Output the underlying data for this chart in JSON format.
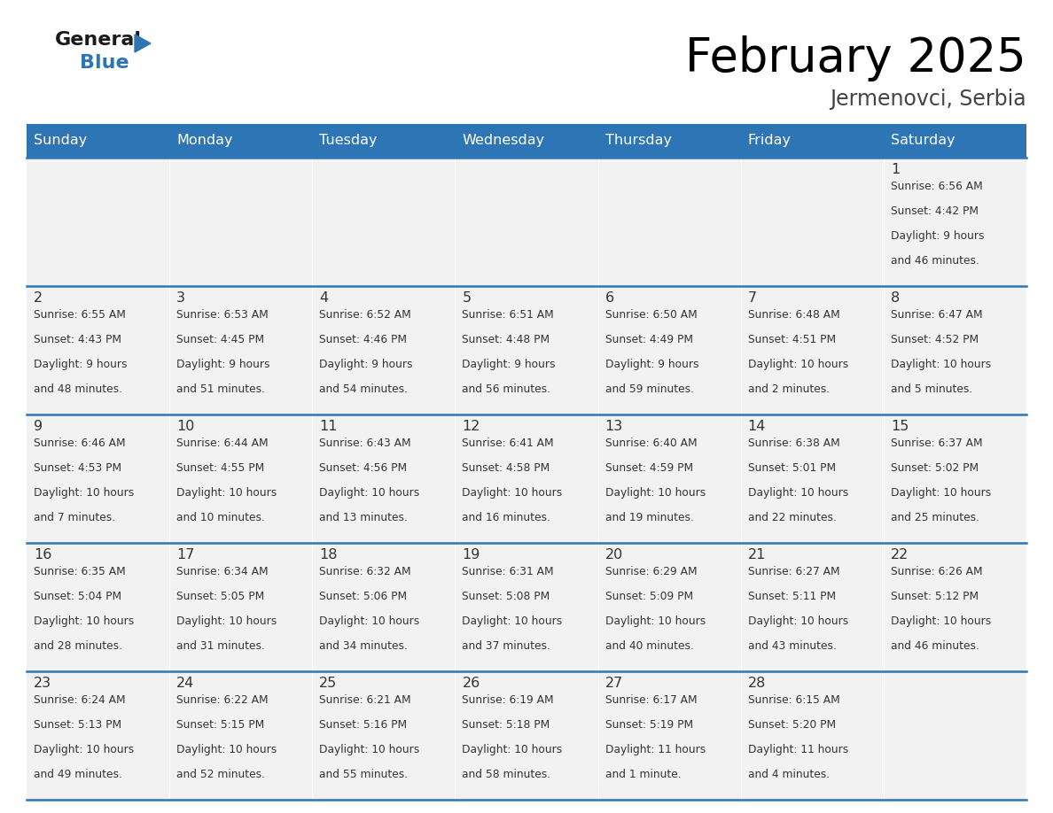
{
  "title": "February 2025",
  "subtitle": "Jermenovci, Serbia",
  "header_color": "#2E75B6",
  "header_text_color": "#FFFFFF",
  "cell_bg_color": "#F2F2F2",
  "cell_bg_alt": "#FFFFFF",
  "separator_color": "#2E75B6",
  "days_of_week": [
    "Sunday",
    "Monday",
    "Tuesday",
    "Wednesday",
    "Thursday",
    "Friday",
    "Saturday"
  ],
  "weeks": [
    [
      {
        "day": "",
        "sunrise": "",
        "sunset": "",
        "daylight": ""
      },
      {
        "day": "",
        "sunrise": "",
        "sunset": "",
        "daylight": ""
      },
      {
        "day": "",
        "sunrise": "",
        "sunset": "",
        "daylight": ""
      },
      {
        "day": "",
        "sunrise": "",
        "sunset": "",
        "daylight": ""
      },
      {
        "day": "",
        "sunrise": "",
        "sunset": "",
        "daylight": ""
      },
      {
        "day": "",
        "sunrise": "",
        "sunset": "",
        "daylight": ""
      },
      {
        "day": "1",
        "sunrise": "Sunrise: 6:56 AM",
        "sunset": "Sunset: 4:42 PM",
        "daylight": "Daylight: 9 hours\nand 46 minutes."
      }
    ],
    [
      {
        "day": "2",
        "sunrise": "Sunrise: 6:55 AM",
        "sunset": "Sunset: 4:43 PM",
        "daylight": "Daylight: 9 hours\nand 48 minutes."
      },
      {
        "day": "3",
        "sunrise": "Sunrise: 6:53 AM",
        "sunset": "Sunset: 4:45 PM",
        "daylight": "Daylight: 9 hours\nand 51 minutes."
      },
      {
        "day": "4",
        "sunrise": "Sunrise: 6:52 AM",
        "sunset": "Sunset: 4:46 PM",
        "daylight": "Daylight: 9 hours\nand 54 minutes."
      },
      {
        "day": "5",
        "sunrise": "Sunrise: 6:51 AM",
        "sunset": "Sunset: 4:48 PM",
        "daylight": "Daylight: 9 hours\nand 56 minutes."
      },
      {
        "day": "6",
        "sunrise": "Sunrise: 6:50 AM",
        "sunset": "Sunset: 4:49 PM",
        "daylight": "Daylight: 9 hours\nand 59 minutes."
      },
      {
        "day": "7",
        "sunrise": "Sunrise: 6:48 AM",
        "sunset": "Sunset: 4:51 PM",
        "daylight": "Daylight: 10 hours\nand 2 minutes."
      },
      {
        "day": "8",
        "sunrise": "Sunrise: 6:47 AM",
        "sunset": "Sunset: 4:52 PM",
        "daylight": "Daylight: 10 hours\nand 5 minutes."
      }
    ],
    [
      {
        "day": "9",
        "sunrise": "Sunrise: 6:46 AM",
        "sunset": "Sunset: 4:53 PM",
        "daylight": "Daylight: 10 hours\nand 7 minutes."
      },
      {
        "day": "10",
        "sunrise": "Sunrise: 6:44 AM",
        "sunset": "Sunset: 4:55 PM",
        "daylight": "Daylight: 10 hours\nand 10 minutes."
      },
      {
        "day": "11",
        "sunrise": "Sunrise: 6:43 AM",
        "sunset": "Sunset: 4:56 PM",
        "daylight": "Daylight: 10 hours\nand 13 minutes."
      },
      {
        "day": "12",
        "sunrise": "Sunrise: 6:41 AM",
        "sunset": "Sunset: 4:58 PM",
        "daylight": "Daylight: 10 hours\nand 16 minutes."
      },
      {
        "day": "13",
        "sunrise": "Sunrise: 6:40 AM",
        "sunset": "Sunset: 4:59 PM",
        "daylight": "Daylight: 10 hours\nand 19 minutes."
      },
      {
        "day": "14",
        "sunrise": "Sunrise: 6:38 AM",
        "sunset": "Sunset: 5:01 PM",
        "daylight": "Daylight: 10 hours\nand 22 minutes."
      },
      {
        "day": "15",
        "sunrise": "Sunrise: 6:37 AM",
        "sunset": "Sunset: 5:02 PM",
        "daylight": "Daylight: 10 hours\nand 25 minutes."
      }
    ],
    [
      {
        "day": "16",
        "sunrise": "Sunrise: 6:35 AM",
        "sunset": "Sunset: 5:04 PM",
        "daylight": "Daylight: 10 hours\nand 28 minutes."
      },
      {
        "day": "17",
        "sunrise": "Sunrise: 6:34 AM",
        "sunset": "Sunset: 5:05 PM",
        "daylight": "Daylight: 10 hours\nand 31 minutes."
      },
      {
        "day": "18",
        "sunrise": "Sunrise: 6:32 AM",
        "sunset": "Sunset: 5:06 PM",
        "daylight": "Daylight: 10 hours\nand 34 minutes."
      },
      {
        "day": "19",
        "sunrise": "Sunrise: 6:31 AM",
        "sunset": "Sunset: 5:08 PM",
        "daylight": "Daylight: 10 hours\nand 37 minutes."
      },
      {
        "day": "20",
        "sunrise": "Sunrise: 6:29 AM",
        "sunset": "Sunset: 5:09 PM",
        "daylight": "Daylight: 10 hours\nand 40 minutes."
      },
      {
        "day": "21",
        "sunrise": "Sunrise: 6:27 AM",
        "sunset": "Sunset: 5:11 PM",
        "daylight": "Daylight: 10 hours\nand 43 minutes."
      },
      {
        "day": "22",
        "sunrise": "Sunrise: 6:26 AM",
        "sunset": "Sunset: 5:12 PM",
        "daylight": "Daylight: 10 hours\nand 46 minutes."
      }
    ],
    [
      {
        "day": "23",
        "sunrise": "Sunrise: 6:24 AM",
        "sunset": "Sunset: 5:13 PM",
        "daylight": "Daylight: 10 hours\nand 49 minutes."
      },
      {
        "day": "24",
        "sunrise": "Sunrise: 6:22 AM",
        "sunset": "Sunset: 5:15 PM",
        "daylight": "Daylight: 10 hours\nand 52 minutes."
      },
      {
        "day": "25",
        "sunrise": "Sunrise: 6:21 AM",
        "sunset": "Sunset: 5:16 PM",
        "daylight": "Daylight: 10 hours\nand 55 minutes."
      },
      {
        "day": "26",
        "sunrise": "Sunrise: 6:19 AM",
        "sunset": "Sunset: 5:18 PM",
        "daylight": "Daylight: 10 hours\nand 58 minutes."
      },
      {
        "day": "27",
        "sunrise": "Sunrise: 6:17 AM",
        "sunset": "Sunset: 5:19 PM",
        "daylight": "Daylight: 11 hours\nand 1 minute."
      },
      {
        "day": "28",
        "sunrise": "Sunrise: 6:15 AM",
        "sunset": "Sunset: 5:20 PM",
        "daylight": "Daylight: 11 hours\nand 4 minutes."
      },
      {
        "day": "",
        "sunrise": "",
        "sunset": "",
        "daylight": ""
      }
    ]
  ]
}
